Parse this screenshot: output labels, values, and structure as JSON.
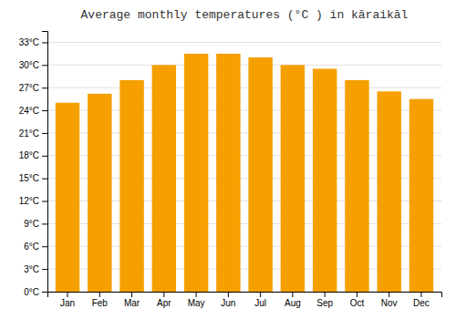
{
  "chart_data": {
    "type": "bar",
    "title": "Average monthly temperatures (°C ) in kāraikāl",
    "categories": [
      "Jan",
      "Feb",
      "Mar",
      "Apr",
      "May",
      "Jun",
      "Jul",
      "Aug",
      "Sep",
      "Oct",
      "Nov",
      "Dec"
    ],
    "values": [
      25.0,
      26.2,
      28.0,
      30.0,
      31.5,
      31.5,
      31.0,
      30.0,
      29.5,
      28.0,
      26.5,
      25.5
    ],
    "color": "#F5A000",
    "ylim": [
      0,
      34.5
    ],
    "yticks": [
      {
        "value": 0,
        "label": "0°C"
      },
      {
        "value": 3,
        "label": "3°C"
      },
      {
        "value": 6,
        "label": "6°C"
      },
      {
        "value": 9,
        "label": "9°C"
      },
      {
        "value": 12,
        "label": "12°C"
      },
      {
        "value": 15,
        "label": "15°C"
      },
      {
        "value": 18,
        "label": "18°C"
      },
      {
        "value": 21,
        "label": "21°C"
      },
      {
        "value": 24,
        "label": "24°C"
      },
      {
        "value": 27,
        "label": "27°C"
      },
      {
        "value": 30,
        "label": "30°C"
      },
      {
        "value": 33,
        "label": "33°C"
      }
    ],
    "grid": true
  }
}
